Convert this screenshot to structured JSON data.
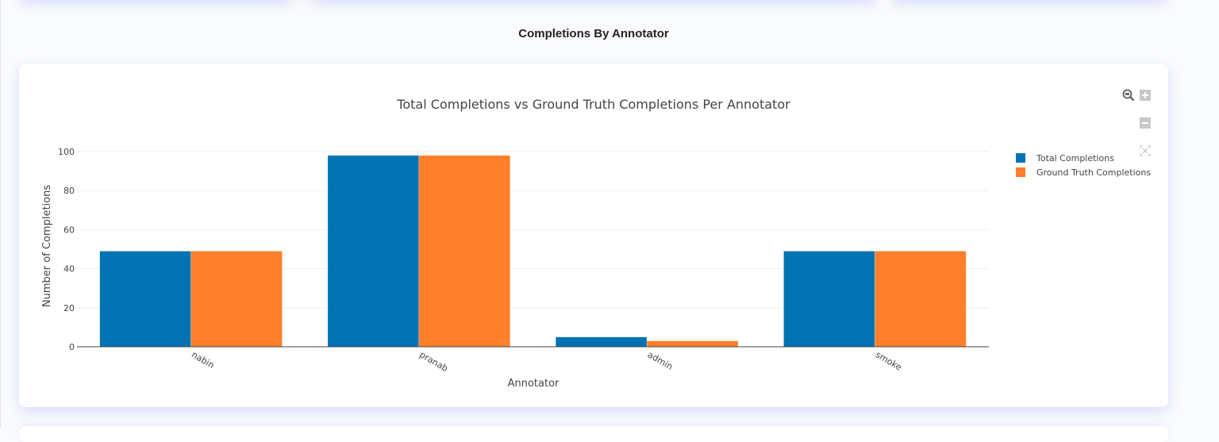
{
  "page": {
    "section_title": "Completions By Annotator"
  },
  "chart_data": {
    "type": "bar",
    "title": "Total Completions vs Ground Truth Completions Per Annotator",
    "xlabel": "Annotator",
    "ylabel": "Number of Completions",
    "categories": [
      "nabin",
      "pranab",
      "admin",
      "smoke"
    ],
    "series": [
      {
        "name": "Total Completions",
        "color": "#0173b2",
        "values": [
          49,
          98,
          5,
          49
        ]
      },
      {
        "name": "Ground Truth Completions",
        "color": "#ff7f2a",
        "values": [
          49,
          98,
          3,
          49
        ]
      }
    ],
    "ylim": [
      0,
      100
    ],
    "yticks": [
      0,
      20,
      40,
      60,
      80,
      100
    ],
    "grid": true,
    "legend_position": "right"
  },
  "modebar": {
    "icons": [
      "zoom-icon",
      "zoom-in-icon",
      "zoom-out-icon",
      "autoscale-icon"
    ]
  }
}
